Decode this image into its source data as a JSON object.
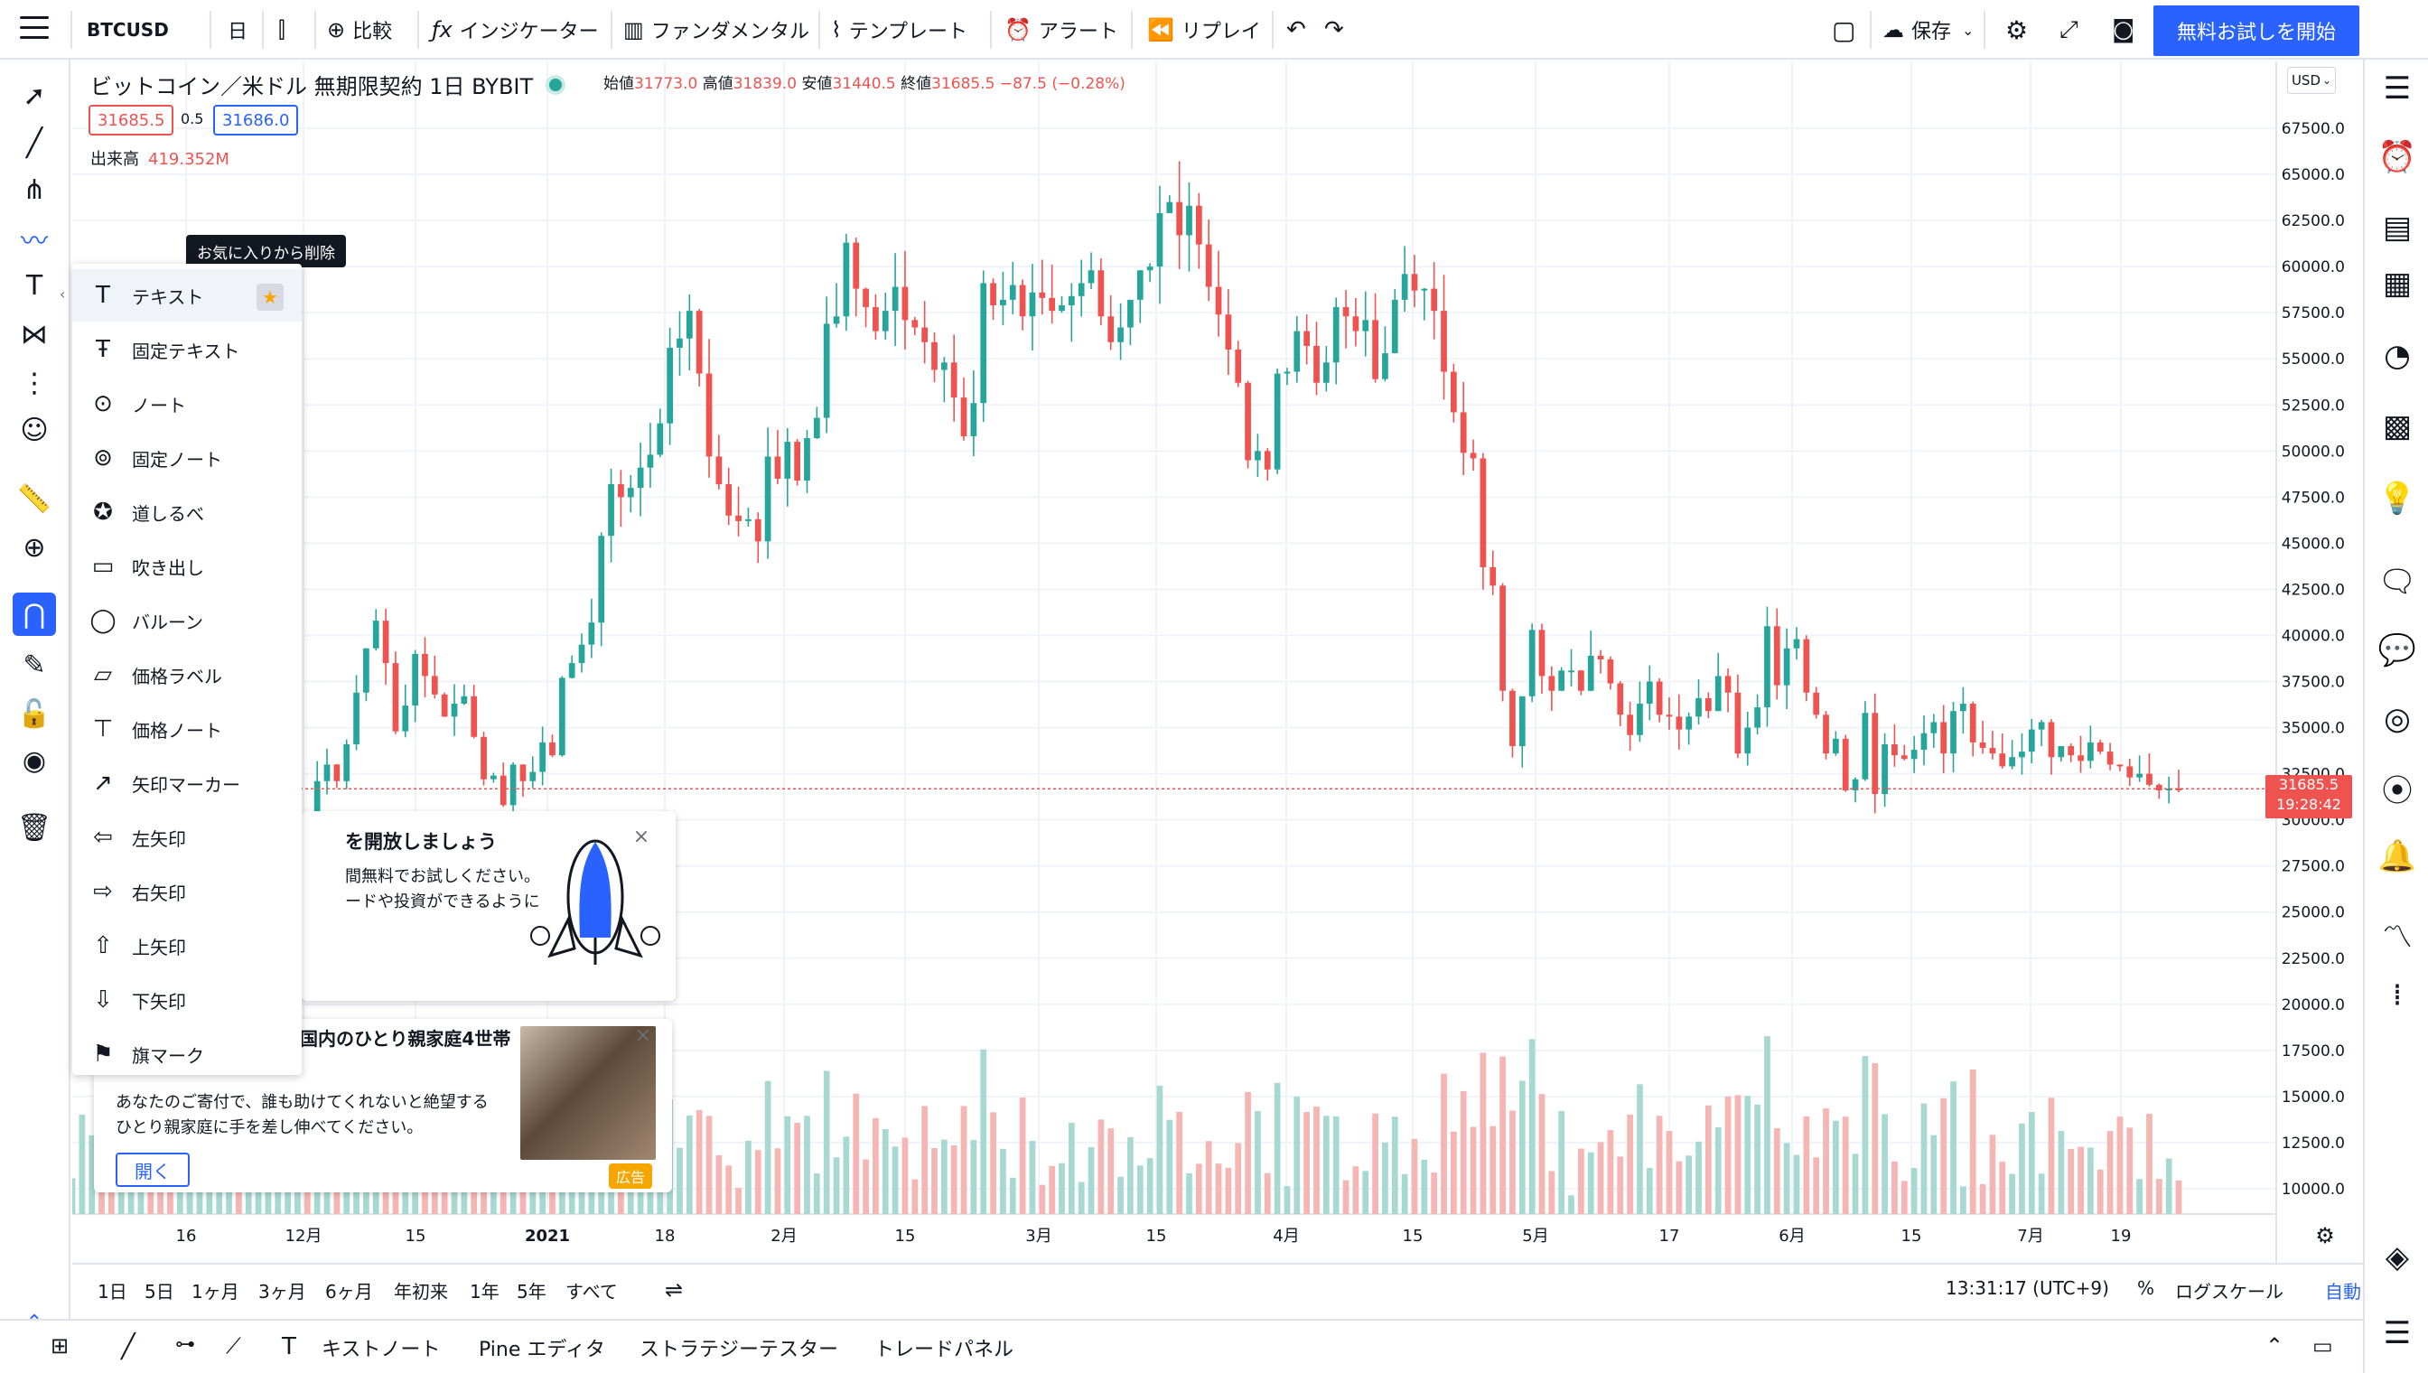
{
  "topbar": {
    "symbol": "BTCUSD",
    "interval": "日",
    "compare": "比較",
    "indicators": "インジケーター",
    "fundamentals": "ファンダメンタル",
    "templates": "テンプレート",
    "alert": "アラート",
    "replay": "リプレイ",
    "save": "保存",
    "trial_button": "無料お試しを開始"
  },
  "legend": {
    "title": "ビットコイン／米ドル 無期限契約 1日 BYBIT",
    "open_label": "始値",
    "open": "31773.0",
    "high_label": "高値",
    "high": "31839.0",
    "low_label": "安値",
    "low": "31440.5",
    "close_label": "終値",
    "close": "31685.5",
    "change": "−87.5 (−0.28%)",
    "bid": "31685.5",
    "spread": "0.5",
    "ask": "31686.0",
    "volume_label": "出来高",
    "volume": "419.352M"
  },
  "currency": "USD",
  "last_price": {
    "price": "31685.5",
    "countdown": "19:28:42"
  },
  "colors": {
    "up": "#26a69a",
    "down": "#ef5350",
    "accent": "#2962ff",
    "up_vol": "#a7d9d2",
    "down_vol": "#f5b5b3"
  },
  "drawing_menu": {
    "tooltip": "お気に入りから削除",
    "items": [
      {
        "label": "テキスト",
        "icon": "text-icon"
      },
      {
        "label": "固定テキスト",
        "icon": "anchored-text-icon"
      },
      {
        "label": "ノート",
        "icon": "note-icon"
      },
      {
        "label": "固定ノート",
        "icon": "anchored-note-icon"
      },
      {
        "label": "道しるべ",
        "icon": "signpost-icon"
      },
      {
        "label": "吹き出し",
        "icon": "callout-icon"
      },
      {
        "label": "バルーン",
        "icon": "balloon-icon"
      },
      {
        "label": "価格ラベル",
        "icon": "price-label-icon"
      },
      {
        "label": "価格ノート",
        "icon": "price-note-icon"
      },
      {
        "label": "矢印マーカー",
        "icon": "arrow-marker-icon"
      },
      {
        "label": "左矢印",
        "icon": "arrow-left-icon"
      },
      {
        "label": "右矢印",
        "icon": "arrow-right-icon"
      },
      {
        "label": "上矢印",
        "icon": "arrow-up-icon"
      },
      {
        "label": "下矢印",
        "icon": "arrow-down-icon"
      },
      {
        "label": "旗マーク",
        "icon": "flag-icon"
      }
    ]
  },
  "ad1": {
    "title": "を開放しましょう",
    "line1": "間無料でお試しください。",
    "line2": "ードや投資ができるように"
  },
  "ad2": {
    "title": "国内のひとり親家庭4世帯",
    "body1": "あなたのご寄付で、誰も助けてくれないと絶望する",
    "body2": "ひとり親家庭に手を差し伸べてください。",
    "open": "開く",
    "badge": "広告"
  },
  "range_bar": {
    "ranges": [
      "1日",
      "5日",
      "1ヶ月",
      "3ヶ月",
      "6ヶ月",
      "年初来",
      "1年",
      "5年",
      "すべて"
    ],
    "time": "13:31:17 (UTC+9)",
    "percent": "%",
    "log": "ログスケール",
    "auto": "自動"
  },
  "bottom_tabs": {
    "text_note": "キストノート",
    "pine": "Pine エディタ",
    "strategy": "ストラテジーテスター",
    "trade": "トレードパネル"
  },
  "chart_data": {
    "type": "candlestick",
    "symbol": "BTCUSD",
    "y_ticks": [
      "67500.0",
      "65000.0",
      "62500.0",
      "60000.0",
      "57500.0",
      "55000.0",
      "52500.0",
      "50000.0",
      "47500.0",
      "45000.0",
      "42500.0",
      "40000.0",
      "37500.0",
      "35000.0",
      "32500.0",
      "30000.0",
      "27500.0",
      "25000.0",
      "22500.0",
      "20000.0",
      "17500.0",
      "15000.0",
      "12500.0",
      "10000.0"
    ],
    "x_ticks": [
      "16",
      "12月",
      "15",
      "2021",
      "18",
      "2月",
      "15",
      "3月",
      "15",
      "4月",
      "15",
      "5月",
      "17",
      "6月",
      "15",
      "7月",
      "19"
    ],
    "series_closes": [
      18200,
      19100,
      19400,
      18800,
      18500,
      19200,
      19600,
      19900,
      19300,
      19100,
      18600,
      18900,
      19300,
      20800,
      21400,
      22800,
      23500,
      23200,
      23800,
      24600,
      26400,
      26600,
      27000,
      29200,
      29000,
      32100,
      33000,
      32100,
      34100,
      36900,
      39300,
      40800,
      38500,
      34800,
      36200,
      39000,
      37800,
      36800,
      35600,
      36300,
      36700,
      34500,
      32200,
      32400,
      30800,
      33000,
      32100,
      32600,
      34200,
      33500,
      37700,
      38500,
      39500,
      40700,
      45400,
      48200,
      47500,
      48000,
      49100,
      49800,
      51500,
      55600,
      56100,
      57600,
      54200,
      49700,
      48200,
      46500,
      46200,
      46300,
      45100,
      49700,
      48500,
      50500,
      48400,
      50700,
      51800,
      56900,
      57300,
      61300,
      58800,
      57800,
      56500,
      57600,
      58900,
      57100,
      56700,
      55900,
      54400,
      54800,
      52900,
      50800,
      52600,
      59100,
      57900,
      58200,
      59000,
      57300,
      58600,
      58300,
      57600,
      57900,
      58400,
      59100,
      59800,
      57300,
      55900,
      56700,
      58200,
      59800,
      60000,
      62900,
      63500,
      61700,
      63300,
      61200,
      58900,
      57400,
      55500,
      53700,
      49500,
      50000,
      49000,
      54200,
      54300,
      56500,
      55700,
      53700,
      54800,
      57800,
      57300,
      56500,
      57100,
      53900,
      55300,
      58200,
      59600,
      58700,
      58800,
      57600,
      54300,
      52100,
      49900,
      49600,
      43700,
      42700,
      37000,
      34000,
      36700,
      40300,
      37800,
      37000,
      38100,
      38100,
      37000,
      38900,
      38700,
      37400,
      35700,
      34600,
      36300,
      37500,
      35700,
      35600,
      34900,
      35600,
      36600,
      35900,
      37800,
      36900,
      33600,
      35000,
      36100,
      40500,
      37300,
      39300,
      39800,
      36900,
      35700,
      33600,
      34400,
      31600,
      32200,
      35800,
      31400,
      34100,
      33500,
      33300,
      33800,
      34700,
      35300,
      33600,
      35900,
      36300,
      34200,
      33900,
      33600,
      32900,
      33400,
      33700,
      34900,
      35300,
      33400,
      34000,
      33500,
      33200,
      34200,
      33700,
      33000,
      32900,
      32300,
      32500,
      31900,
      31600,
      31700,
      31685.5
    ]
  }
}
